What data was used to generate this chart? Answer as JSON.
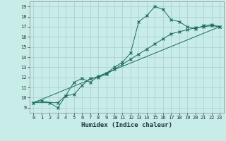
{
  "xlabel": "Humidex (Indice chaleur)",
  "background_color": "#c8ece8",
  "line_color": "#1a6b5a",
  "grid_color": "#aacccc",
  "xlim": [
    -0.5,
    23.5
  ],
  "ylim": [
    8.5,
    19.5
  ],
  "xticks": [
    0,
    1,
    2,
    3,
    4,
    5,
    6,
    7,
    8,
    9,
    10,
    11,
    12,
    13,
    14,
    15,
    16,
    17,
    18,
    19,
    20,
    21,
    22,
    23
  ],
  "yticks": [
    9,
    10,
    11,
    12,
    13,
    14,
    15,
    16,
    17,
    18,
    19
  ],
  "curve1_x": [
    0,
    1,
    2,
    3,
    4,
    5,
    6,
    7,
    8,
    9,
    10,
    11,
    12,
    13,
    14,
    15,
    16,
    17,
    18,
    19,
    20,
    21,
    22,
    23
  ],
  "curve1_y": [
    9.5,
    9.7,
    9.5,
    9.0,
    10.2,
    11.5,
    11.9,
    11.5,
    12.1,
    12.4,
    13.0,
    13.5,
    14.4,
    17.5,
    18.1,
    19.0,
    18.7,
    17.7,
    17.5,
    17.0,
    16.8,
    17.1,
    17.2,
    17.0
  ],
  "curve2_x": [
    0,
    3,
    4,
    5,
    6,
    7,
    8,
    9,
    10,
    11,
    12,
    13,
    14,
    15,
    16,
    17,
    18,
    19,
    20,
    21,
    22,
    23
  ],
  "curve2_y": [
    9.5,
    9.5,
    10.2,
    10.3,
    11.2,
    11.9,
    12.0,
    12.3,
    12.8,
    13.3,
    13.8,
    14.3,
    14.8,
    15.3,
    15.8,
    16.3,
    16.5,
    16.7,
    16.9,
    17.0,
    17.1,
    17.0
  ],
  "line3_x": [
    0,
    23
  ],
  "line3_y": [
    9.5,
    17.0
  ]
}
